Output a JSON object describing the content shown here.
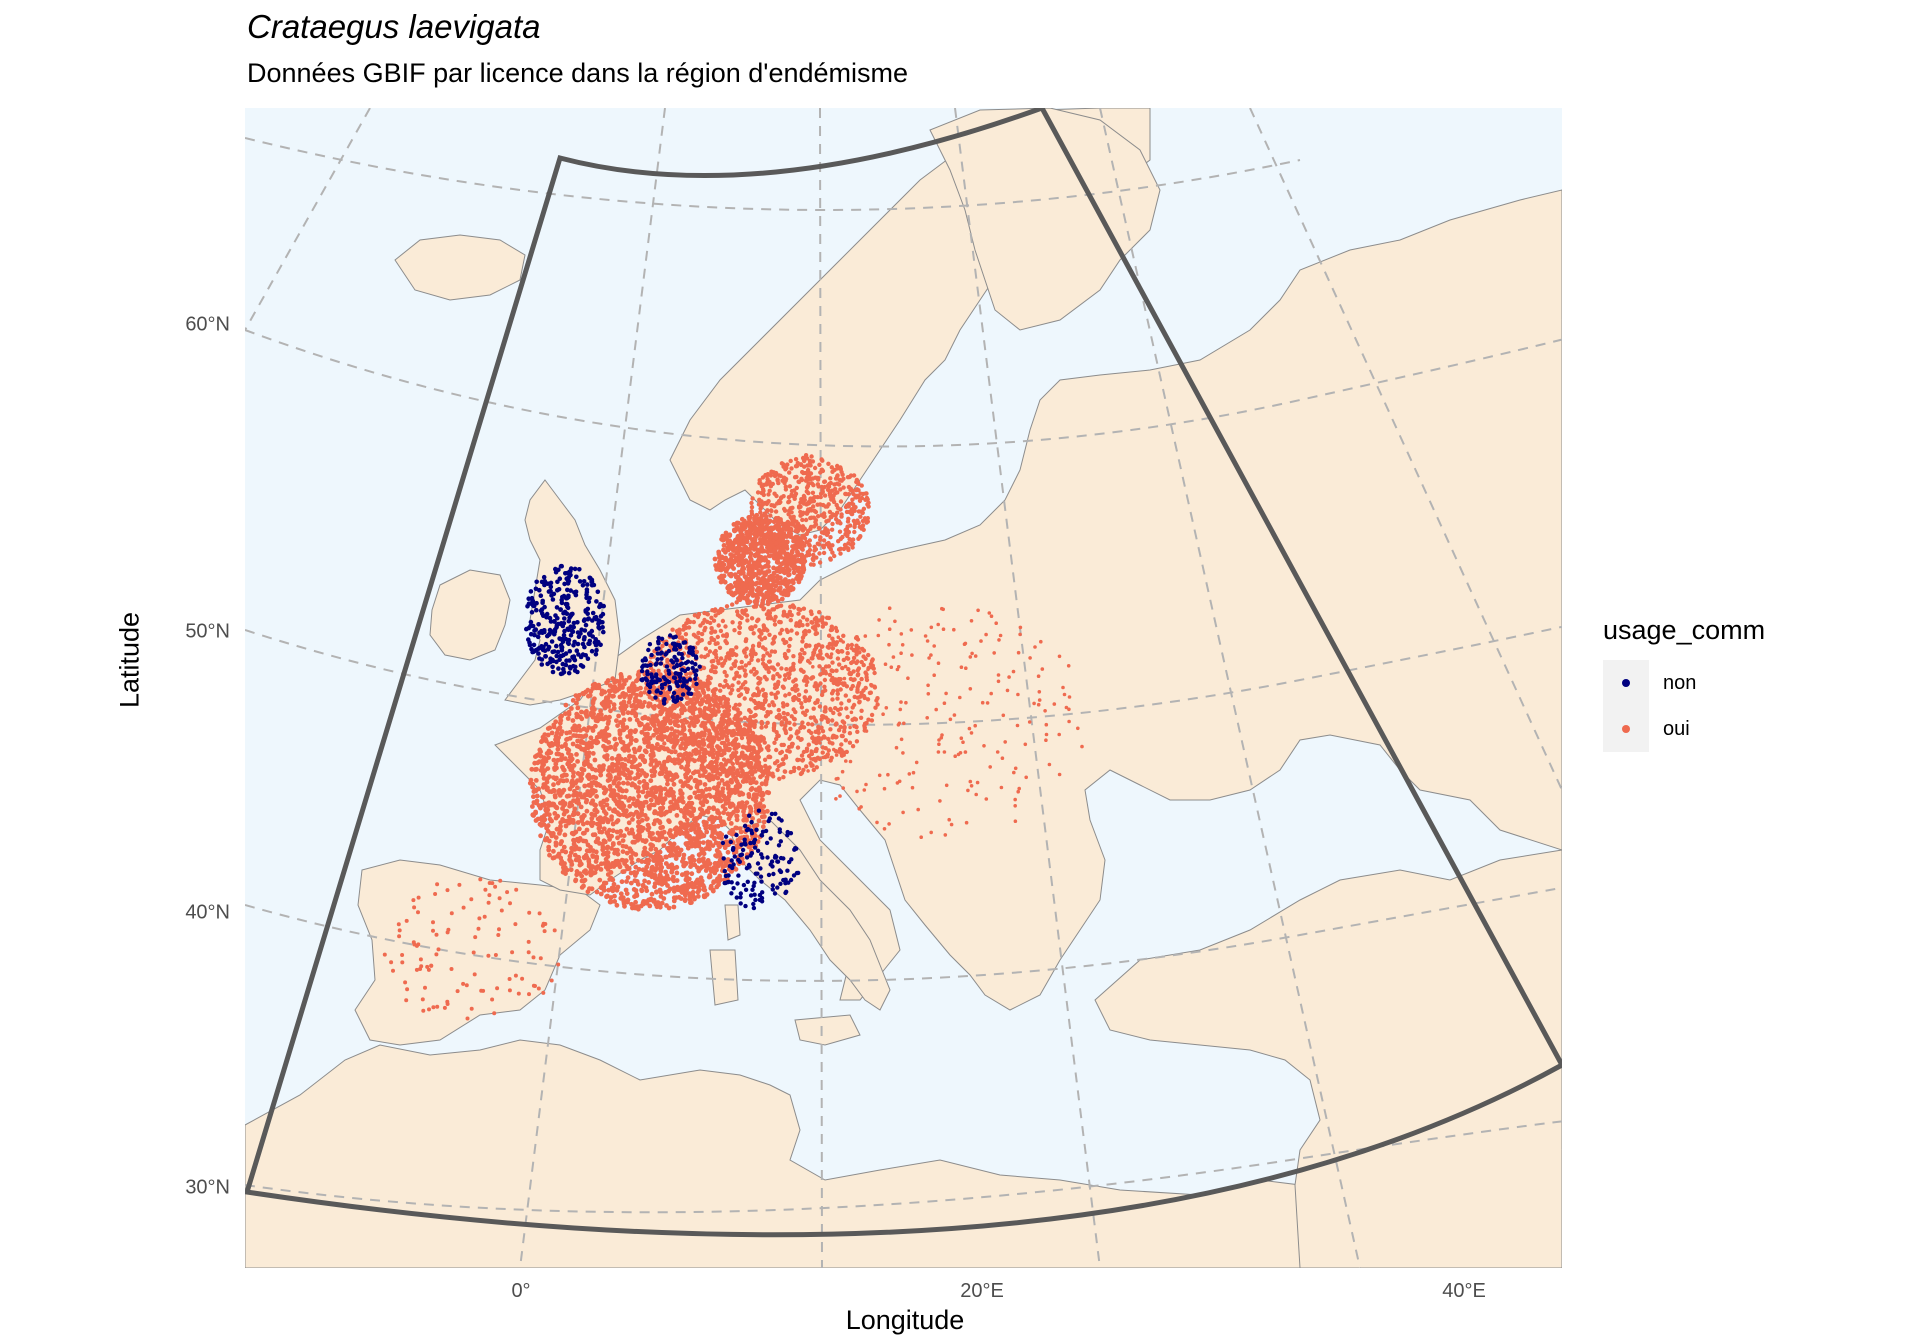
{
  "title": "Crataegus laevigata",
  "subtitle": "Données GBIF par licence dans la région d'endémisme",
  "axes": {
    "xlabel": "Longitude",
    "ylabel": "Latitude",
    "x_ticks": [
      "0°",
      "20°E",
      "40°E"
    ],
    "y_ticks": [
      "30°N",
      "40°N",
      "50°N",
      "60°N"
    ]
  },
  "legend": {
    "title": "usage_comm",
    "entries": [
      {
        "label": "non",
        "color": "#000080"
      },
      {
        "label": "oui",
        "color": "#ef6a4f"
      }
    ]
  },
  "colors": {
    "sea": "#eef7fd",
    "land": "#faebd7",
    "border": "#8c8c8c",
    "graticule": "#b3b3b3",
    "region_outline": "#595959"
  },
  "map": {
    "projection": "conic",
    "visible_lon_range": [
      -12,
      44
    ],
    "visible_lat_range": [
      27,
      70
    ],
    "graticule_lat": [
      30,
      40,
      50,
      60
    ],
    "graticule_lon": [
      -10,
      0,
      10,
      20,
      30,
      40
    ],
    "region_of_endemism": {
      "lon_range": [
        -12,
        44
      ],
      "lat_range": [
        28,
        72
      ]
    }
  },
  "occurrence_clusters": [
    {
      "name": "France",
      "usage_comm": "oui",
      "density": "very high"
    },
    {
      "name": "Germany-Benelux",
      "usage_comm": "oui",
      "density": "high"
    },
    {
      "name": "Denmark",
      "usage_comm": "oui",
      "density": "very high"
    },
    {
      "name": "Southern Sweden",
      "usage_comm": "oui",
      "density": "high"
    },
    {
      "name": "England",
      "usage_comm": "non",
      "density": "high"
    },
    {
      "name": "Netherlands-Belgium",
      "usage_comm": "non",
      "density": "medium"
    },
    {
      "name": "Northern Italy",
      "usage_comm": "non",
      "density": "medium"
    },
    {
      "name": "Spain",
      "usage_comm": "oui",
      "density": "low"
    },
    {
      "name": "Eastern Europe",
      "usage_comm": "oui",
      "density": "low"
    }
  ]
}
